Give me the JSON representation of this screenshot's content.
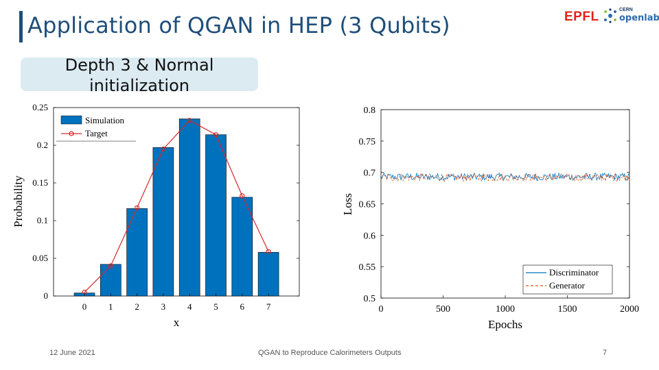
{
  "slide": {
    "title": "Application of QGAN in HEP (3 Qubits)",
    "subtitle": "Depth 3 & Normal\ninitialization",
    "footer_date": "12 June 2021",
    "footer_center": "QGAN to Reproduce Calorimeters Outputs",
    "page_number": "7",
    "logo_epfl": "EPFL",
    "logo_cern": "CERN",
    "logo_openlab": "openlab"
  },
  "colors": {
    "title": "#1f4e79",
    "bar": "#0072bd",
    "target": "#d62728",
    "generator": "#d95319",
    "discriminator": "#0072bd"
  },
  "chart_data": [
    {
      "type": "bar",
      "categories": [
        "0",
        "1",
        "2",
        "3",
        "4",
        "5",
        "6",
        "7"
      ],
      "series": [
        {
          "name": "Simulation",
          "values": [
            0.004,
            0.042,
            0.116,
            0.197,
            0.235,
            0.214,
            0.131,
            0.058
          ]
        },
        {
          "name": "Target",
          "values": [
            0.005,
            0.04,
            0.117,
            0.195,
            0.233,
            0.214,
            0.133,
            0.059
          ]
        }
      ],
      "xlabel": "x",
      "ylabel": "Probability",
      "ylim": [
        0,
        0.25
      ],
      "yticks": [
        "0",
        "0.05",
        "0.1",
        "0.15",
        "0.2",
        "0.25"
      ],
      "legend": [
        "Simulation",
        "Target"
      ]
    },
    {
      "type": "line",
      "x": [
        0,
        2000
      ],
      "series": [
        {
          "name": "Discriminator",
          "mean": 0.693,
          "noise": 0.006
        },
        {
          "name": "Generator",
          "mean": 0.692,
          "noise": 0.006
        }
      ],
      "xlabel": "Epochs",
      "ylabel": "Loss",
      "xlim": [
        0,
        2000
      ],
      "ylim": [
        0.5,
        0.8
      ],
      "xticks": [
        "0",
        "500",
        "1000",
        "1500",
        "2000"
      ],
      "yticks": [
        "0.5",
        "0.55",
        "0.6",
        "0.65",
        "0.7",
        "0.75",
        "0.8"
      ],
      "legend": [
        "Discriminator",
        "Generator"
      ]
    }
  ]
}
